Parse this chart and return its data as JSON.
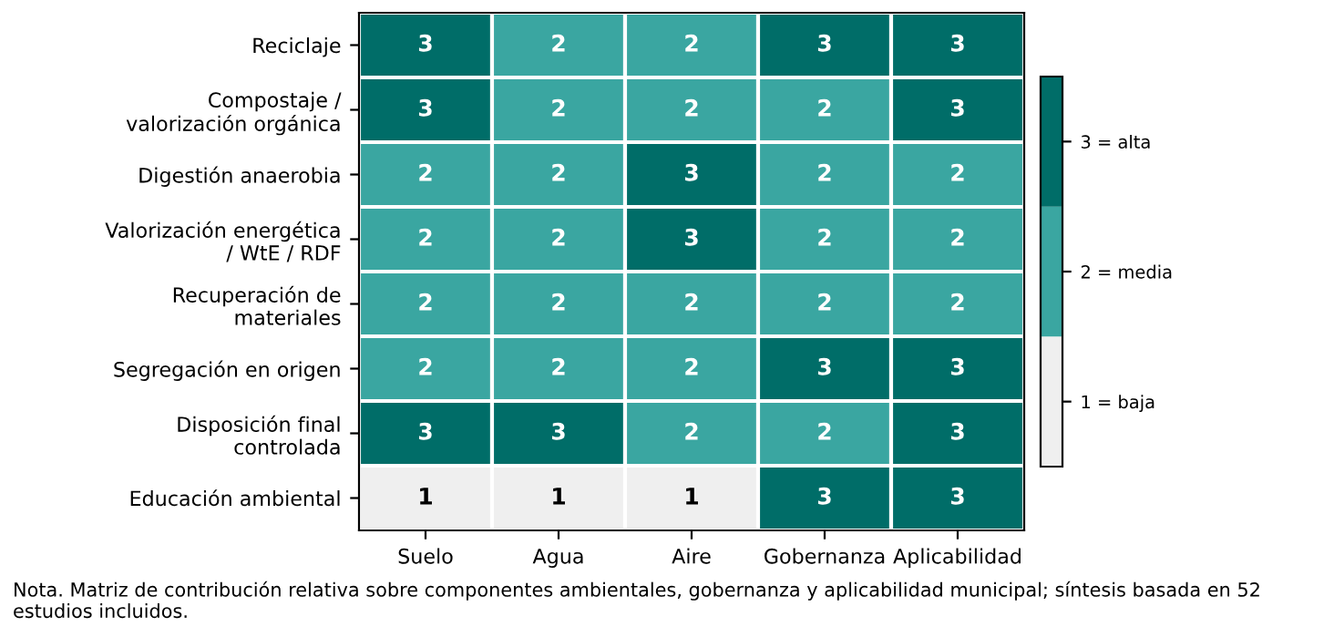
{
  "chart_data": {
    "type": "heatmap",
    "categories": [
      "Suelo",
      "Agua",
      "Aire",
      "Gobernanza",
      "Aplicabilidad"
    ],
    "y_categories": [
      "Reciclaje",
      "Compostaje /\nvalorización orgánica",
      "Digestión anaerobia",
      "Valorización energética\n/ WtE / RDF",
      "Recuperación de\nmateriales",
      "Segregación en origen",
      "Disposición final\ncontrolada",
      "Educación ambiental"
    ],
    "cells": [
      [
        3,
        2,
        2,
        3,
        3
      ],
      [
        3,
        2,
        2,
        2,
        3
      ],
      [
        2,
        2,
        3,
        2,
        2
      ],
      [
        2,
        2,
        3,
        2,
        2
      ],
      [
        2,
        2,
        2,
        2,
        2
      ],
      [
        2,
        2,
        2,
        3,
        3
      ],
      [
        3,
        3,
        2,
        2,
        3
      ],
      [
        1,
        1,
        1,
        3,
        3
      ]
    ],
    "colors": [
      "#efefef",
      "#3aa6a1",
      "#006d68"
    ],
    "clim": [
      0.5,
      3.5
    ],
    "cticks": [
      {
        "value": 1,
        "label": "1 = baja"
      },
      {
        "value": 2,
        "label": "2 = media"
      },
      {
        "value": 3,
        "label": "3 = alta"
      }
    ],
    "data_labels": true,
    "annotations": [
      "Nota. Matriz de contribución relativa sobre componentes ambientales, gobernanza y aplicabilidad municipal; síntesis basada en 52 estudios incluidos."
    ]
  }
}
